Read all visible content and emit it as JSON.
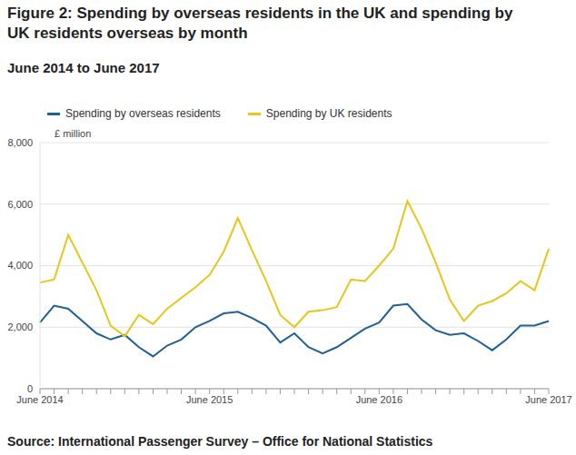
{
  "chart_data": {
    "type": "line",
    "title": "Figure 2: Spending by overseas residents in the UK and spending by UK residents overseas by month",
    "subtitle": "June 2014 to June 2017",
    "ylabel": "£ million",
    "source": "Source: International Passenger Survey – Office for National Statistics",
    "categories": [
      "June 2014",
      null,
      null,
      null,
      null,
      null,
      null,
      null,
      null,
      null,
      null,
      null,
      "June 2015",
      null,
      null,
      null,
      null,
      null,
      null,
      null,
      null,
      null,
      null,
      null,
      "June 2016",
      null,
      null,
      null,
      null,
      null,
      null,
      null,
      null,
      null,
      null,
      null,
      "June 2017"
    ],
    "series": [
      {
        "name": "Spending by overseas residents",
        "color": "#206095",
        "values": [
          2150,
          2700,
          2600,
          2200,
          1800,
          1600,
          1750,
          1350,
          1050,
          1400,
          1600,
          2000,
          2200,
          2450,
          2500,
          2300,
          2050,
          1500,
          1800,
          1350,
          1150,
          1350,
          1650,
          1950,
          2150,
          2700,
          2750,
          2250,
          1900,
          1750,
          1800,
          1550,
          1250,
          1600,
          2050,
          2050,
          2200
        ]
      },
      {
        "name": "Spending by UK residents",
        "color": "#e6c619",
        "values": [
          3450,
          3550,
          5000,
          4100,
          3200,
          2050,
          1700,
          2400,
          2100,
          2600,
          2950,
          3300,
          3700,
          4450,
          5550,
          4500,
          3500,
          2400,
          2000,
          2500,
          2550,
          2650,
          3550,
          3500,
          4000,
          4550,
          6100,
          5200,
          4100,
          2900,
          2200,
          2700,
          2850,
          3100,
          3500,
          3200,
          4550
        ]
      }
    ],
    "ylim": [
      0,
      8000
    ],
    "yticks": [
      0,
      {
        "value": 2000,
        "label": "2,000"
      },
      {
        "value": 4000,
        "label": "4,000"
      },
      {
        "value": 6000,
        "label": "6,000"
      },
      {
        "value": 8000,
        "label": "8,000"
      }
    ],
    "grid": true,
    "legend": "top left"
  }
}
